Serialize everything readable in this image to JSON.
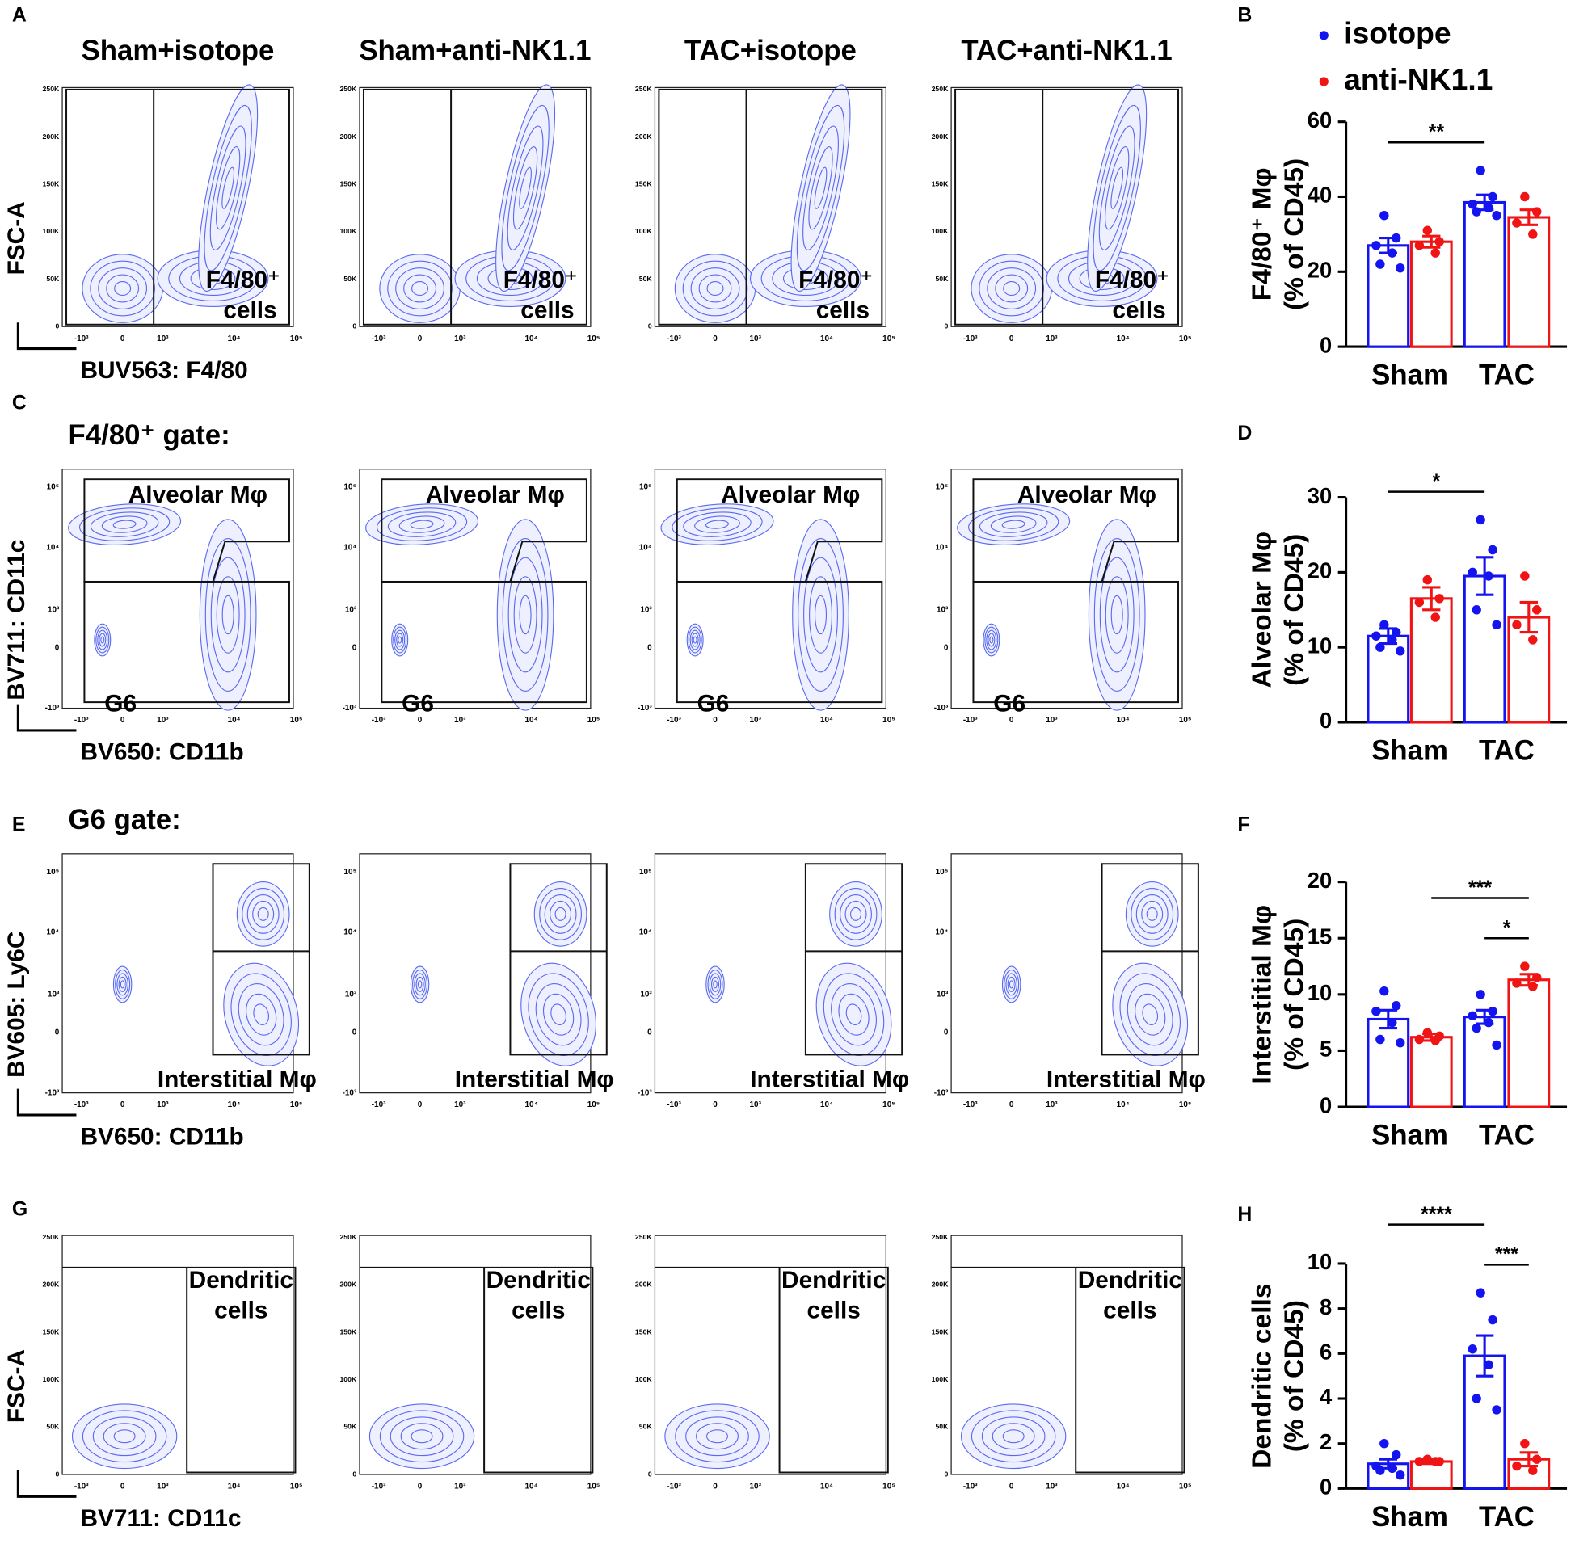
{
  "panel_letters": [
    "A",
    "B",
    "C",
    "D",
    "E",
    "F",
    "G",
    "H"
  ],
  "flow": {
    "column_titles": [
      "Sham+isotope",
      "Sham+anti-NK1.1",
      "TAC+isotope",
      "TAC+anti-NK1.1"
    ],
    "linear_ticks": [
      "250K",
      "200K",
      "150K",
      "100K",
      "50K",
      "0"
    ],
    "log_ticks": [
      "-10³",
      "0",
      "10³",
      "10⁴",
      "10⁵"
    ],
    "rows": [
      {
        "ylabel": "FSC-A",
        "xlabel": "BUV563: F4/80",
        "yscale": "linear",
        "gate_labels": [
          "F4/80⁺",
          "cells"
        ]
      },
      {
        "gate_title": "F4/80⁺ gate:",
        "ylabel": "BV711: CD11c",
        "xlabel": "BV650: CD11b",
        "yscale": "log",
        "gate_labels": [
          "Alveolar Mφ",
          "G6"
        ]
      },
      {
        "gate_title": "G6 gate:",
        "ylabel": "BV605: Ly6C",
        "xlabel": "BV650: CD11b",
        "yscale": "log",
        "gate_labels": [
          "Interstitial Mφ"
        ]
      },
      {
        "ylabel": "FSC-A",
        "xlabel": "BV711: CD11c",
        "yscale": "linear",
        "gate_labels": [
          "Dendritic",
          "cells"
        ]
      }
    ]
  },
  "chart_data": [
    {
      "type": "bar",
      "categories": [
        "Sham",
        "TAC"
      ],
      "legend": "top",
      "ylabel": [
        "F4/80⁺ Mφ",
        "(% of CD45)"
      ],
      "ylim": [
        0,
        60
      ],
      "yticks": [
        0,
        20,
        40,
        60
      ],
      "series": [
        {
          "name": "isotope",
          "color": "#1414f0",
          "values": [
            27,
            38.5
          ],
          "errors": [
            2,
            2
          ],
          "points": [
            [
              35,
              29,
              27,
              25,
              22,
              21
            ],
            [
              47,
              40,
              38,
              37,
              36,
              35
            ]
          ]
        },
        {
          "name": "anti-NK1.1",
          "color": "#f01414",
          "values": [
            28,
            34.5
          ],
          "errors": [
            1.5,
            2
          ],
          "points": [
            [
              31,
              28,
              27,
              25
            ],
            [
              40,
              36,
              33,
              30
            ]
          ]
        }
      ],
      "brackets": [
        {
          "label": "**",
          "pair": [
            0,
            2
          ]
        }
      ]
    },
    {
      "type": "bar",
      "categories": [
        "Sham",
        "TAC"
      ],
      "ylabel": [
        "Alveolar Mφ",
        "(% of CD45)"
      ],
      "ylim": [
        0,
        30
      ],
      "yticks": [
        0,
        10,
        20,
        30
      ],
      "series": [
        {
          "name": "isotope",
          "color": "#1414f0",
          "values": [
            11.5,
            19.5
          ],
          "errors": [
            1,
            2.5
          ],
          "points": [
            [
              13,
              12,
              11.5,
              11,
              10,
              9.5
            ],
            [
              27,
              23,
              20,
              19.5,
              15,
              13
            ]
          ]
        },
        {
          "name": "anti-NK1.1",
          "color": "#f01414",
          "values": [
            16.5,
            14
          ],
          "errors": [
            1.5,
            2
          ],
          "points": [
            [
              19,
              16.5,
              16,
              14
            ],
            [
              19.5,
              15,
              13,
              11
            ]
          ]
        }
      ],
      "brackets": [
        {
          "label": "*",
          "pair": [
            0,
            2
          ]
        }
      ]
    },
    {
      "type": "bar",
      "categories": [
        "Sham",
        "TAC"
      ],
      "ylabel": [
        "Interstitial Mφ",
        "(% of CD45)"
      ],
      "ylim": [
        0,
        20
      ],
      "yticks": [
        0,
        5,
        10,
        15,
        20
      ],
      "series": [
        {
          "name": "isotope",
          "color": "#1414f0",
          "values": [
            7.8,
            8
          ],
          "errors": [
            0.8,
            0.6
          ],
          "points": [
            [
              10.3,
              9,
              8.5,
              7.5,
              6,
              5.7
            ],
            [
              10,
              8.5,
              8.1,
              7.5,
              7,
              5.5
            ]
          ]
        },
        {
          "name": "anti-NK1.1",
          "color": "#f01414",
          "values": [
            6.2,
            11.3
          ],
          "errors": [
            0.3,
            0.5
          ],
          "points": [
            [
              6.6,
              6.3,
              6,
              5.9
            ],
            [
              12.5,
              11.5,
              11,
              10.7
            ]
          ]
        }
      ],
      "brackets": [
        {
          "label": "*",
          "pair": [
            2,
            3
          ]
        },
        {
          "label": "***",
          "pair": [
            1,
            3
          ]
        }
      ]
    },
    {
      "type": "bar",
      "categories": [
        "Sham",
        "TAC"
      ],
      "ylabel": [
        "Dendritic cells",
        "(% of CD45)"
      ],
      "ylim": [
        0,
        10
      ],
      "yticks": [
        0,
        2,
        4,
        6,
        8,
        10
      ],
      "series": [
        {
          "name": "isotope",
          "color": "#1414f0",
          "values": [
            1.1,
            5.9
          ],
          "errors": [
            0.2,
            0.9
          ],
          "points": [
            [
              2,
              1.5,
              1,
              0.9,
              0.8,
              0.6
            ],
            [
              8.7,
              7.5,
              6.2,
              5.5,
              4,
              3.5
            ]
          ]
        },
        {
          "name": "anti-NK1.1",
          "color": "#f01414",
          "values": [
            1.2,
            1.3
          ],
          "errors": [
            0.1,
            0.3
          ],
          "points": [
            [
              1.3,
              1.2,
              1.2,
              1.2
            ],
            [
              2,
              1.3,
              1,
              0.8
            ]
          ]
        }
      ],
      "brackets": [
        {
          "label": "***",
          "pair": [
            2,
            3
          ]
        },
        {
          "label": "****",
          "pair": [
            0,
            2
          ]
        }
      ]
    }
  ]
}
